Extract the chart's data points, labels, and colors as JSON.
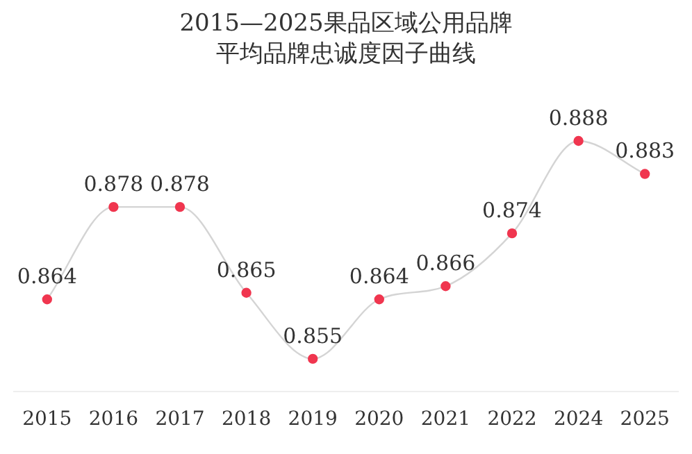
{
  "chart_data": {
    "type": "line",
    "title": "2015—2025果品区域公用品牌",
    "subtitle": "平均品牌忠诚度因子曲线",
    "categories": [
      "2015",
      "2016",
      "2017",
      "2018",
      "2019",
      "2020",
      "2021",
      "2022",
      "2024",
      "2025"
    ],
    "series": [
      {
        "color": "#d4d4d4",
        "colors": [
          "#f0364f",
          "#f0364f",
          "#f0364f",
          "#f0364f",
          "#f0364f",
          "#f0364f",
          "#f0364f",
          "#f0364f",
          "#f0364f",
          "#f0364f"
        ],
        "values": [
          0.864,
          0.878,
          0.878,
          0.865,
          0.855,
          0.864,
          0.866,
          0.874,
          0.888,
          0.883
        ]
      }
    ],
    "data_labels": true,
    "marker": "circle",
    "grid": false,
    "legend": false,
    "tick_labels": "x"
  }
}
